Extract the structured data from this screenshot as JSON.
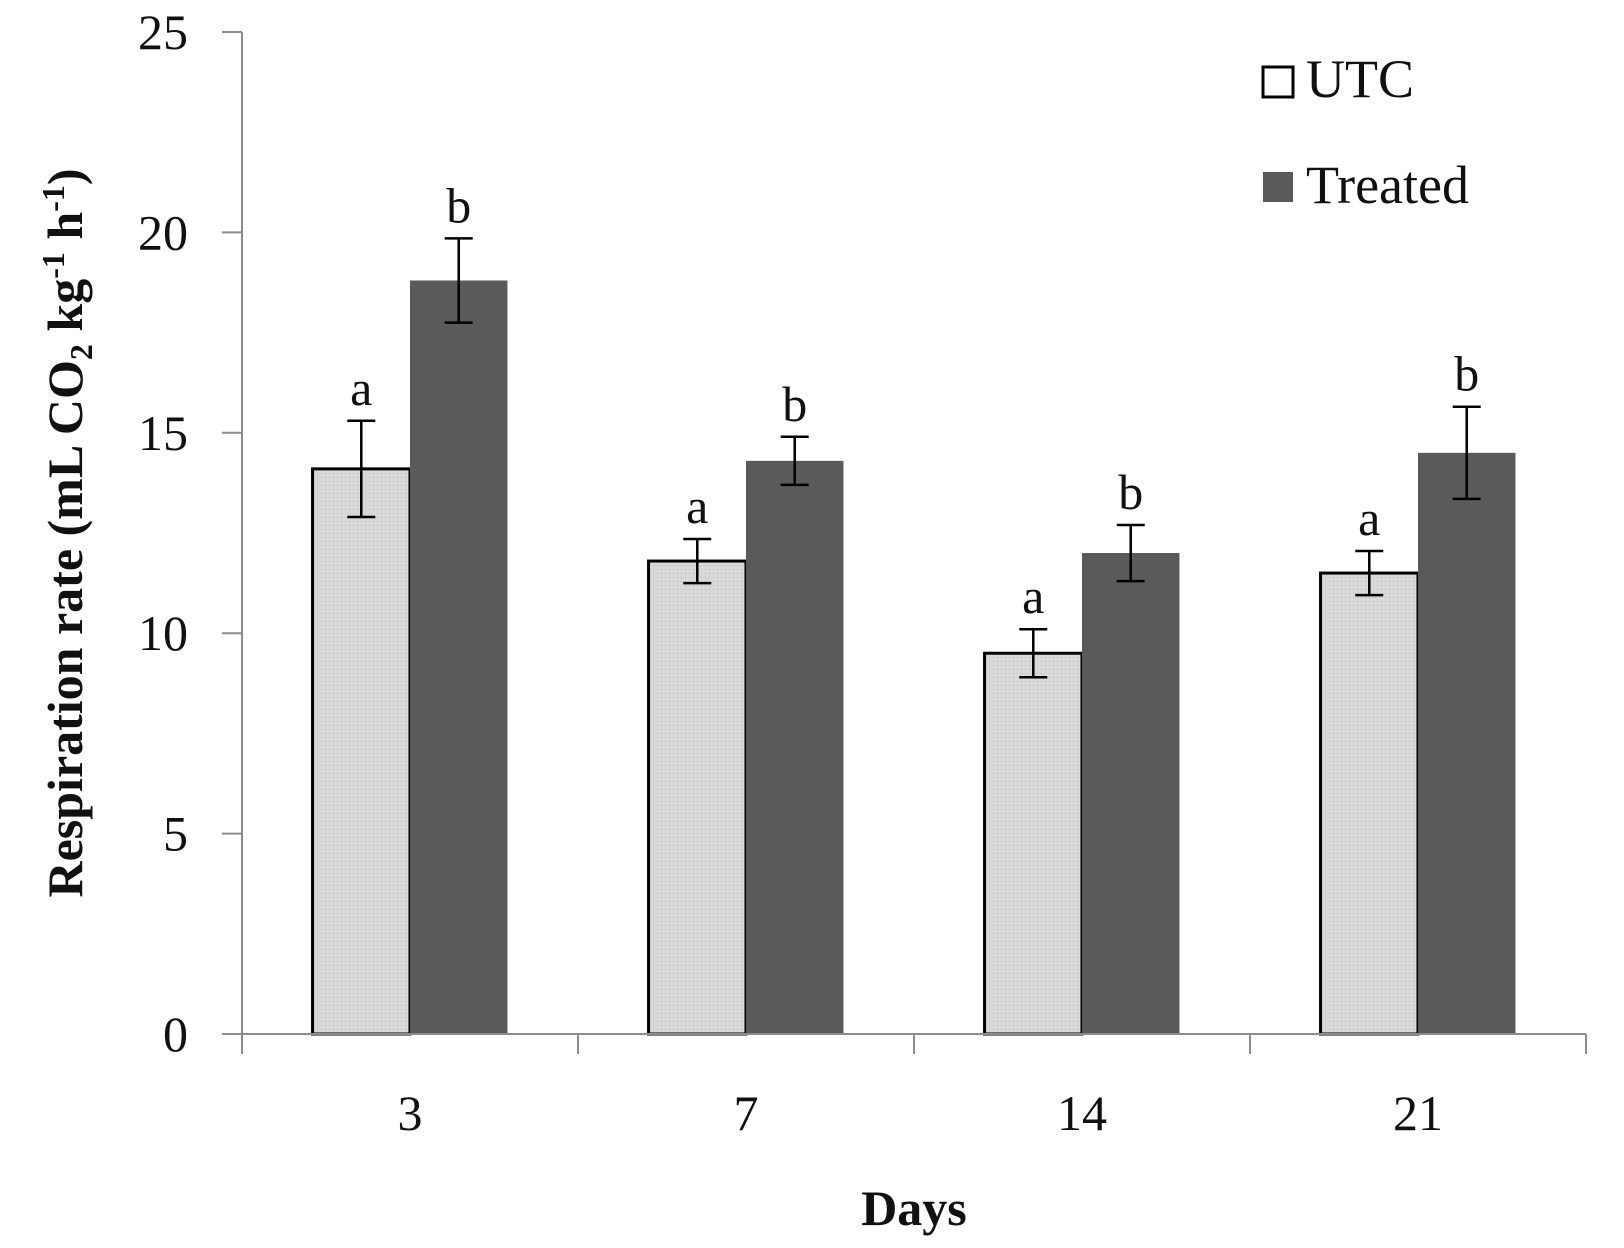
{
  "chart_data": {
    "type": "bar",
    "categories": [
      "3",
      "7",
      "14",
      "21"
    ],
    "series": [
      {
        "name": "UTC",
        "color": "#d9d9d9",
        "values": [
          14.1,
          11.8,
          9.5,
          11.5
        ],
        "errors": [
          1.2,
          0.55,
          0.6,
          0.55
        ],
        "letters": [
          "a",
          "a",
          "a",
          "a"
        ]
      },
      {
        "name": "Treated",
        "color": "#5a5a5a",
        "values": [
          18.8,
          14.3,
          12.0,
          14.5
        ],
        "errors": [
          1.05,
          0.6,
          0.7,
          1.15
        ],
        "letters": [
          "b",
          "b",
          "b",
          "b"
        ]
      }
    ],
    "ylim": [
      0,
      25
    ],
    "yticks": [
      "0",
      "5",
      "10",
      "15",
      "20",
      "25"
    ],
    "xlabel": "Days",
    "ylabel": {
      "prefix": "Respiration rate (mL CO",
      "sub": "2",
      "mid1": " kg",
      "sup1": "-1",
      "mid2": " h",
      "sup2": "-1",
      "suffix": ")"
    },
    "legend_position": "top-right",
    "grid": false
  }
}
